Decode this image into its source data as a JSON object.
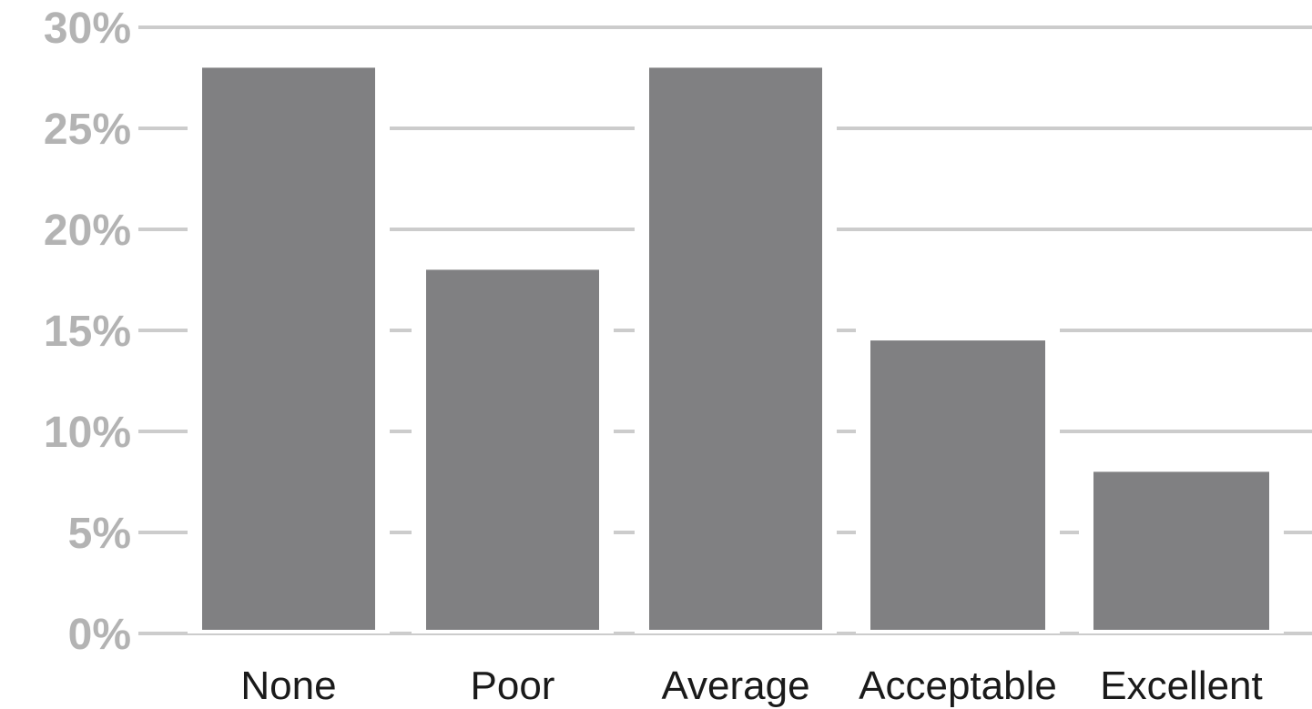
{
  "chart_data": {
    "type": "bar",
    "title": "",
    "xlabel": "",
    "ylabel": "",
    "categories": [
      "None",
      "Poor",
      "Average",
      "Acceptable",
      "Excellent"
    ],
    "values": [
      28,
      18,
      28,
      14.5,
      8
    ],
    "ylim": [
      0,
      30
    ],
    "y_ticks": [
      0,
      5,
      10,
      15,
      20,
      25,
      30
    ],
    "y_tick_labels": [
      "0%",
      "5%",
      "10%",
      "15%",
      "20%",
      "25%",
      "30%"
    ],
    "grid": true,
    "legend": "none",
    "colors": {
      "bar": "#808082",
      "grid": "#cccccc",
      "y_tick_text": "#b3b3b3",
      "x_tick_text": "#1a1a1a"
    }
  }
}
